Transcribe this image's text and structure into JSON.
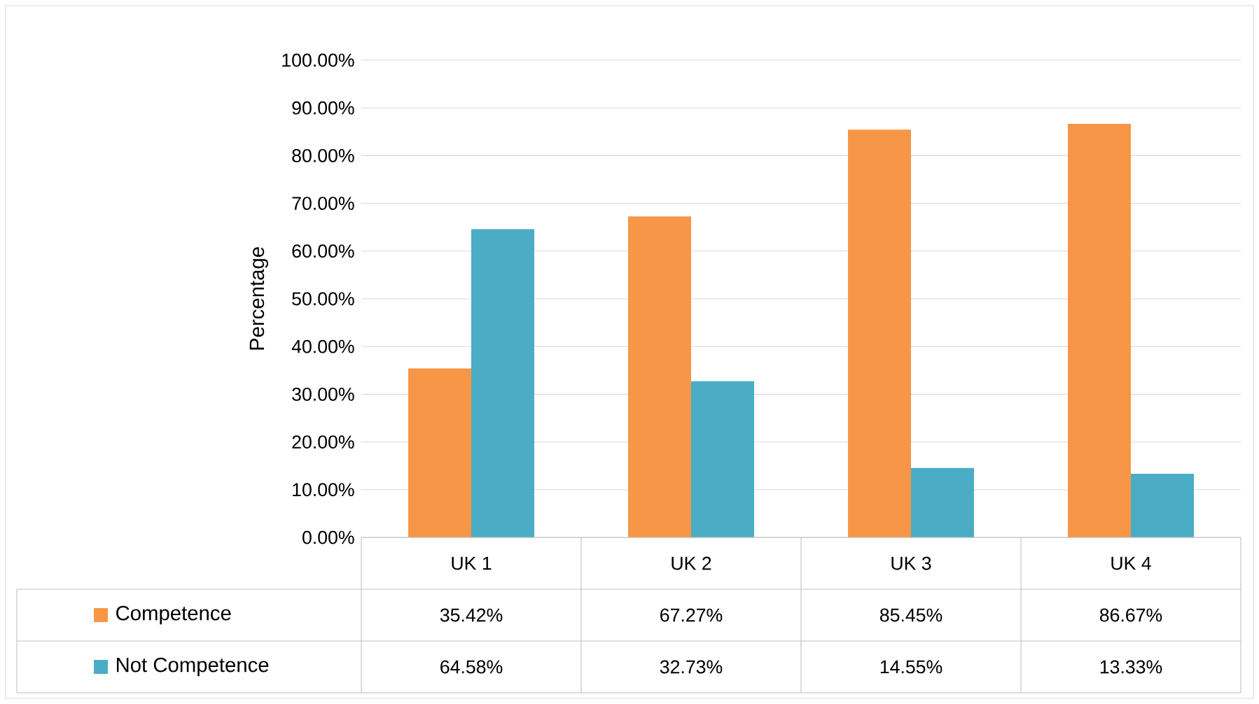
{
  "chart_data": {
    "type": "bar",
    "ylabel": "Percentage",
    "categories": [
      "UK 1",
      "UK 2",
      "UK 3",
      "UK 4"
    ],
    "series": [
      {
        "name": "Competence",
        "color": "#f79646",
        "values": [
          35.42,
          67.27,
          85.45,
          86.67
        ],
        "value_labels": [
          "35.42%",
          "67.27%",
          "85.45%",
          "86.67%"
        ]
      },
      {
        "name": "Not Competence",
        "color": "#4bacc6",
        "values": [
          64.58,
          32.73,
          14.55,
          13.33
        ],
        "value_labels": [
          "64.58%",
          "32.73%",
          "14.55%",
          "13.33%"
        ]
      }
    ],
    "ylim": [
      0,
      100
    ],
    "yticks": [
      {
        "value": 0,
        "label": "0.00%"
      },
      {
        "value": 10,
        "label": "10.00%"
      },
      {
        "value": 20,
        "label": "20.00%"
      },
      {
        "value": 30,
        "label": "30.00%"
      },
      {
        "value": 40,
        "label": "40.00%"
      },
      {
        "value": 50,
        "label": "50.00%"
      },
      {
        "value": 60,
        "label": "60.00%"
      },
      {
        "value": 70,
        "label": "70.00%"
      },
      {
        "value": 80,
        "label": "80.00%"
      },
      {
        "value": 90,
        "label": "90.00%"
      },
      {
        "value": 100,
        "label": "100.00%"
      }
    ],
    "grid": true,
    "legend": "bottom"
  }
}
